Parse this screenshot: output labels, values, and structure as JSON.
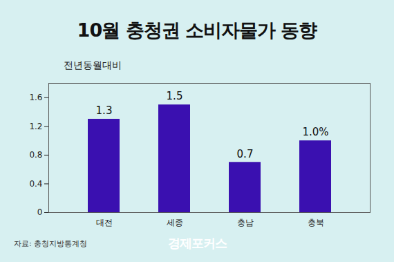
{
  "chart_data": {
    "type": "bar",
    "title": "10월 충청권 소비자물가 동향",
    "subtitle": "전년동월대비",
    "categories": [
      "대전",
      "세종",
      "충남",
      "충북"
    ],
    "values": [
      1.3,
      1.5,
      0.7,
      1.0
    ],
    "value_labels": [
      "1.3",
      "1.5",
      "0.7",
      "1.0%"
    ],
    "data_labels": true,
    "color": "#3a10b0",
    "ylim": [
      0,
      1.8
    ],
    "yticks": [
      0,
      0.4,
      0.8,
      1.2,
      1.6
    ],
    "grid": false,
    "source": "자료: 충청지방통계청",
    "logo": "경제포커스"
  }
}
